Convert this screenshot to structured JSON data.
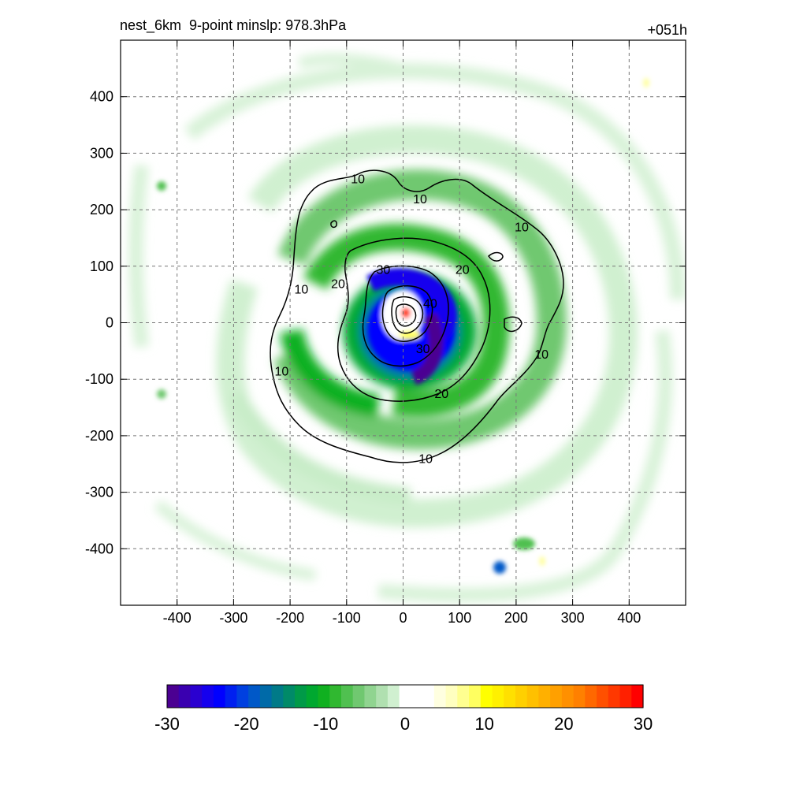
{
  "chart_data": {
    "type": "heatmap",
    "title_left": "nest_6km  9-point minslp: 978.3hPa",
    "title_right": "+051h",
    "xlim": [
      -500,
      500
    ],
    "ylim": [
      -500,
      500
    ],
    "x_ticks": [
      -400,
      -300,
      -200,
      -100,
      0,
      100,
      200,
      300,
      400
    ],
    "y_ticks": [
      400,
      300,
      200,
      100,
      0,
      -100,
      -200,
      -300,
      -400
    ],
    "x_tick_labels": [
      "-400",
      "-300",
      "-200",
      "-100",
      "0",
      "100",
      "200",
      "300",
      "400"
    ],
    "y_tick_labels": [
      "400",
      "300",
      "200",
      "100",
      "0",
      "-100",
      "-200",
      "-300",
      "-400"
    ],
    "grid": true,
    "colorbar": {
      "min": -30,
      "max": 30,
      "ticks": [
        -30,
        -20,
        -10,
        0,
        10,
        20,
        30
      ],
      "tick_labels": [
        "-30",
        "-20",
        "-10",
        "0",
        "10",
        "20",
        "30"
      ],
      "colors": [
        "#4b0092",
        "#3a00b0",
        "#2a00d0",
        "#1500ee",
        "#0000ff",
        "#0020f0",
        "#0040e0",
        "#0058c8",
        "#006aa8",
        "#007a88",
        "#008a68",
        "#009a48",
        "#00a830",
        "#10b020",
        "#30b830",
        "#50c050",
        "#70c870",
        "#90d490",
        "#b0e0b0",
        "#d0f0d0",
        "#ffffff",
        "#ffffff",
        "#ffffff",
        "#ffffe0",
        "#ffffc0",
        "#ffff90",
        "#ffff60",
        "#ffff00",
        "#fff000",
        "#ffe000",
        "#ffd000",
        "#ffc000",
        "#ffb000",
        "#ffa000",
        "#ff9000",
        "#ff8000",
        "#ff6800",
        "#ff5000",
        "#ff3800",
        "#ff2000",
        "#ff0000"
      ]
    },
    "contour_labels": [
      {
        "text": "10",
        "x": -80,
        "y": 255
      },
      {
        "text": "10",
        "x": 30,
        "y": 220
      },
      {
        "text": "10",
        "x": 210,
        "y": 170
      },
      {
        "text": "10",
        "x": -180,
        "y": 60
      },
      {
        "text": "10",
        "x": -215,
        "y": -85
      },
      {
        "text": "10",
        "x": 245,
        "y": -55
      },
      {
        "text": "10",
        "x": 40,
        "y": -240
      },
      {
        "text": "20",
        "x": -115,
        "y": 70
      },
      {
        "text": "20",
        "x": 105,
        "y": 95
      },
      {
        "text": "20",
        "x": 68,
        "y": -125
      },
      {
        "text": "30",
        "x": -35,
        "y": 95
      },
      {
        "text": "30",
        "x": 35,
        "y": -45
      },
      {
        "text": "40",
        "x": 48,
        "y": 35
      }
    ]
  }
}
